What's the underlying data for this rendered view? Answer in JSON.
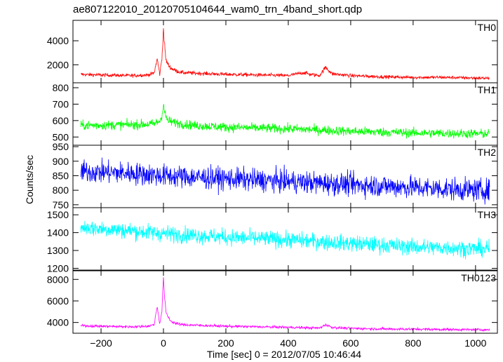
{
  "chart_data": {
    "type": "line",
    "title": "ae807122010_20120705104644_wam0_trn_4band_short.qdp",
    "xlabel": "Time [sec] 0 = 2012/07/05 10:46:44",
    "ylabel": "Counts/sec",
    "xlim": [
      -290,
      1070
    ],
    "xticks": [
      -200,
      0,
      200,
      400,
      600,
      800,
      1000
    ],
    "xtick_labels": [
      "−200",
      "0",
      "200",
      "400",
      "600",
      "800",
      "1000"
    ],
    "panels": [
      {
        "name": "TH0",
        "color": "#ff0000",
        "ylim": [
          500,
          5700
        ],
        "yticks": [
          2000,
          4000
        ],
        "ytick_labels": [
          "2000",
          "4000"
        ],
        "x": [
          -265,
          -200,
          -100,
          -50,
          -30,
          -20,
          -12,
          -5,
          0,
          3,
          8,
          15,
          25,
          40,
          60,
          100,
          200,
          300,
          400,
          450,
          470,
          500,
          520,
          540,
          600,
          700,
          800,
          900,
          1000,
          1045
        ],
        "y": [
          1200,
          1150,
          1100,
          1150,
          1300,
          2500,
          1200,
          2500,
          5000,
          3800,
          2400,
          2000,
          1700,
          1500,
          1350,
          1300,
          1200,
          1150,
          1100,
          1350,
          1200,
          1100,
          1800,
          1250,
          1100,
          1000,
          950,
          950,
          900,
          880
        ],
        "noise": 150
      },
      {
        "name": "TH1",
        "color": "#00ff00",
        "ylim": [
          450,
          830
        ],
        "yticks": [
          500,
          600,
          700,
          800
        ],
        "ytick_labels": [
          "500",
          "600",
          "700",
          "800"
        ],
        "x": [
          -265,
          -100,
          -30,
          -10,
          -3,
          0,
          3,
          8,
          15,
          30,
          60,
          100,
          200,
          400,
          600,
          800,
          1000,
          1045
        ],
        "y": [
          570,
          575,
          580,
          600,
          650,
          700,
          660,
          620,
          600,
          590,
          580,
          570,
          560,
          550,
          535,
          525,
          520,
          520
        ],
        "noise": 28
      },
      {
        "name": "TH2",
        "color": "#0000ff",
        "ylim": [
          740,
          955
        ],
        "yticks": [
          750,
          800,
          850,
          900,
          950
        ],
        "ytick_labels": [
          "750",
          "800",
          "850",
          "900",
          "950"
        ],
        "x": [
          -265,
          -100,
          0,
          200,
          400,
          600,
          800,
          1000,
          1045
        ],
        "y": [
          865,
          858,
          850,
          840,
          830,
          820,
          810,
          800,
          800
        ],
        "noise": 38
      },
      {
        "name": "TH3",
        "color": "#00ffff",
        "ylim": [
          1190,
          1540
        ],
        "yticks": [
          1200,
          1300,
          1400,
          1500
        ],
        "ytick_labels": [
          "1200",
          "1300",
          "1400",
          "1500"
        ],
        "x": [
          -265,
          -100,
          0,
          200,
          400,
          600,
          800,
          1000,
          1045
        ],
        "y": [
          1430,
          1410,
          1395,
          1375,
          1360,
          1340,
          1320,
          1310,
          1310
        ],
        "noise": 45
      },
      {
        "name": "TH0123",
        "color": "#ff00ff",
        "ylim": [
          3000,
          8800
        ],
        "yticks": [
          4000,
          6000,
          8000
        ],
        "ytick_labels": [
          "4000",
          "6000",
          "8000"
        ],
        "x": [
          -265,
          -200,
          -100,
          -50,
          -30,
          -20,
          -12,
          -5,
          0,
          3,
          8,
          15,
          25,
          40,
          60,
          100,
          200,
          300,
          400,
          470,
          500,
          520,
          540,
          600,
          700,
          800,
          900,
          1000,
          1045
        ],
        "y": [
          3700,
          3650,
          3600,
          3650,
          3800,
          5500,
          3900,
          5000,
          8300,
          6500,
          5000,
          4500,
          4100,
          3900,
          3800,
          3750,
          3650,
          3600,
          3550,
          3500,
          3480,
          3800,
          3550,
          3450,
          3400,
          3380,
          3350,
          3330,
          3320
        ],
        "noise": 120
      }
    ]
  }
}
